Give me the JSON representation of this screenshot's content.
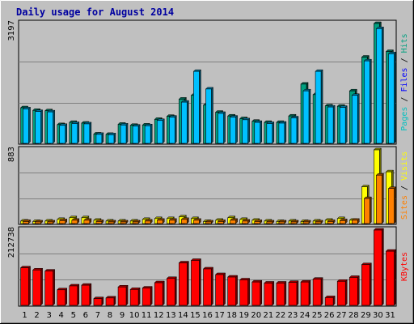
{
  "chart_data": {
    "type": "bar",
    "title": "Daily usage for August 2014",
    "colors": {
      "hits": "#00a080",
      "files": "#00c0ff",
      "pages": "#00a0a0",
      "visits": "#ffff00",
      "sites": "#ff8000",
      "kbytes": "#ff0000",
      "weekend_label": "#008040",
      "weekday_label": "#000000",
      "plot_bg": "#c0c0c0",
      "frame_bg": "#c0c0c0"
    },
    "categories": [
      "1",
      "2",
      "3",
      "4",
      "5",
      "6",
      "7",
      "8",
      "9",
      "10",
      "11",
      "12",
      "13",
      "14",
      "15",
      "16",
      "17",
      "18",
      "19",
      "20",
      "21",
      "22",
      "23",
      "24",
      "25",
      "26",
      "27",
      "28",
      "29",
      "30",
      "31"
    ],
    "weekend_days": [
      "2",
      "3",
      "9",
      "10",
      "16",
      "17",
      "23",
      "24",
      "30",
      "31"
    ],
    "panels": [
      {
        "id": "hits-files-pages",
        "ymax": 3197,
        "ymax_label": "3197",
        "legend": [
          {
            "text": "Pages",
            "color": "#00c0c0"
          },
          {
            "text": " / ",
            "color": "#000000"
          },
          {
            "text": "Files",
            "color": "#0000ff"
          },
          {
            "text": " / ",
            "color": "#000000"
          },
          {
            "text": "Hits",
            "color": "#00a080"
          }
        ],
        "series": [
          {
            "name": "Hits",
            "color": "#00a080",
            "values": [
              950,
              880,
              870,
              500,
              560,
              540,
              250,
              240,
              510,
              480,
              490,
              640,
              720,
              1180,
              1280,
              1020,
              830,
              730,
              660,
              590,
              560,
              560,
              730,
              1580,
              1300,
              1000,
              990,
              1400,
              2300,
              3197,
              2450
            ]
          },
          {
            "name": "Files",
            "color": "#00c0ff",
            "values": [
              920,
              850,
              840,
              480,
              530,
              520,
              240,
              230,
              490,
              460,
              470,
              610,
              700,
              1100,
              1920,
              1450,
              800,
              700,
              630,
              560,
              530,
              540,
              680,
              1400,
              1920,
              970,
              960,
              1280,
              2200,
              3060,
              2390
            ]
          }
        ]
      },
      {
        "id": "visits-sites",
        "ymax": 883,
        "ymax_label": "883",
        "legend": [
          {
            "text": "Sites",
            "color": "#ff8000"
          },
          {
            "text": " / ",
            "color": "#000000"
          },
          {
            "text": "Visits",
            "color": "#ffff00"
          }
        ],
        "series": [
          {
            "name": "Visits",
            "color": "#ffff00",
            "values": [
              30,
              25,
              30,
              50,
              70,
              70,
              40,
              30,
              30,
              30,
              50,
              60,
              60,
              80,
              60,
              25,
              40,
              70,
              50,
              40,
              30,
              25,
              30,
              25,
              30,
              40,
              60,
              40,
              440,
              883,
              620
            ]
          },
          {
            "name": "Sites",
            "color": "#ff8000",
            "values": [
              25,
              20,
              20,
              35,
              40,
              40,
              25,
              20,
              20,
              20,
              30,
              40,
              40,
              50,
              40,
              20,
              25,
              40,
              30,
              25,
              20,
              20,
              20,
              20,
              20,
              25,
              35,
              40,
              300,
              580,
              420
            ]
          }
        ]
      },
      {
        "id": "kbytes",
        "ymax": 212738,
        "ymax_label": "212738",
        "legend": [
          {
            "text": "KBytes",
            "color": "#ff0000"
          }
        ],
        "series": [
          {
            "name": "KBytes",
            "color": "#ff0000",
            "values": [
              106000,
              100000,
              97000,
              44000,
              55000,
              57000,
              19000,
              21000,
              52000,
              45000,
              49000,
              64000,
              76000,
              120000,
              127000,
              103000,
              87000,
              80000,
              72000,
              66000,
              63000,
              63000,
              65000,
              66000,
              74000,
              22000,
              68000,
              79000,
              115000,
              212738,
              153000
            ]
          }
        ]
      }
    ]
  }
}
